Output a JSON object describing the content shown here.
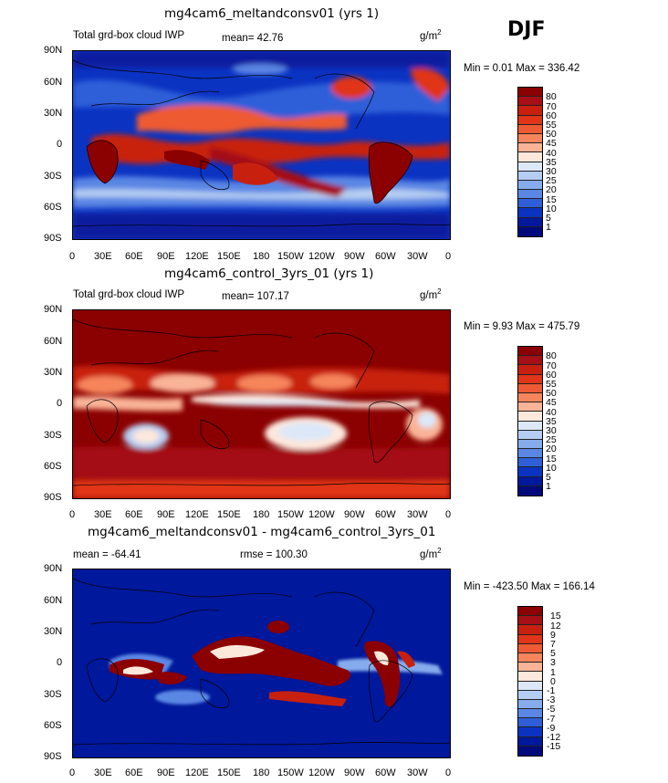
{
  "season": "DJF",
  "units": "g/m",
  "units_sup": "2",
  "panels": [
    {
      "title": "mg4cam6_meltandconsv01 (yrs 1)",
      "label": "Total grd-box cloud IWP",
      "mean": "mean=  42.76",
      "stats": "Min =    0.01  Max = 336.42"
    },
    {
      "title": "mg4cam6_control_3yrs_01 (yrs 1)",
      "label": "Total grd-box cloud IWP",
      "mean": "mean= 107.17",
      "stats": "Min =    9.93  Max = 475.79"
    },
    {
      "title": "mg4cam6_meltandconsv01 - mg4cam6_control_3yrs_01",
      "mean": "mean = -64.41",
      "rmse": "rmse = 100.30",
      "stats": "Min = -423.50  Max = 166.14"
    }
  ],
  "lat_ticks": [
    "90N",
    "60N",
    "30N",
    "0",
    "30S",
    "60S",
    "90S"
  ],
  "lon_ticks": [
    "0",
    "30E",
    "60E",
    "90E",
    "120E",
    "150E",
    "180",
    "150W",
    "120W",
    "90W",
    "60W",
    "30W",
    "0"
  ],
  "colorbar_levels": [
    "80",
    "70",
    "60",
    "55",
    "50",
    "45",
    "40",
    "35",
    "30",
    "25",
    "20",
    "15",
    "10",
    "5",
    "1"
  ],
  "diff_colorbar_levels": [
    "15",
    "12",
    "9",
    "7",
    "5",
    "3",
    "1",
    "0",
    "-1",
    "-3",
    "-5",
    "-7",
    "-9",
    "-12",
    "-15"
  ],
  "colors": [
    "#8b0000",
    "#a50f15",
    "#c8200e",
    "#e03519",
    "#ee5a33",
    "#f6855c",
    "#f9b396",
    "#fde8dc",
    "#dce8f8",
    "#b4cdf2",
    "#86aced",
    "#5a86e4",
    "#2f5fd8",
    "#0b33c2",
    "#00189c",
    "#000a7a"
  ],
  "ocean_blue": "#0b1f9e",
  "background": "#ffffff"
}
